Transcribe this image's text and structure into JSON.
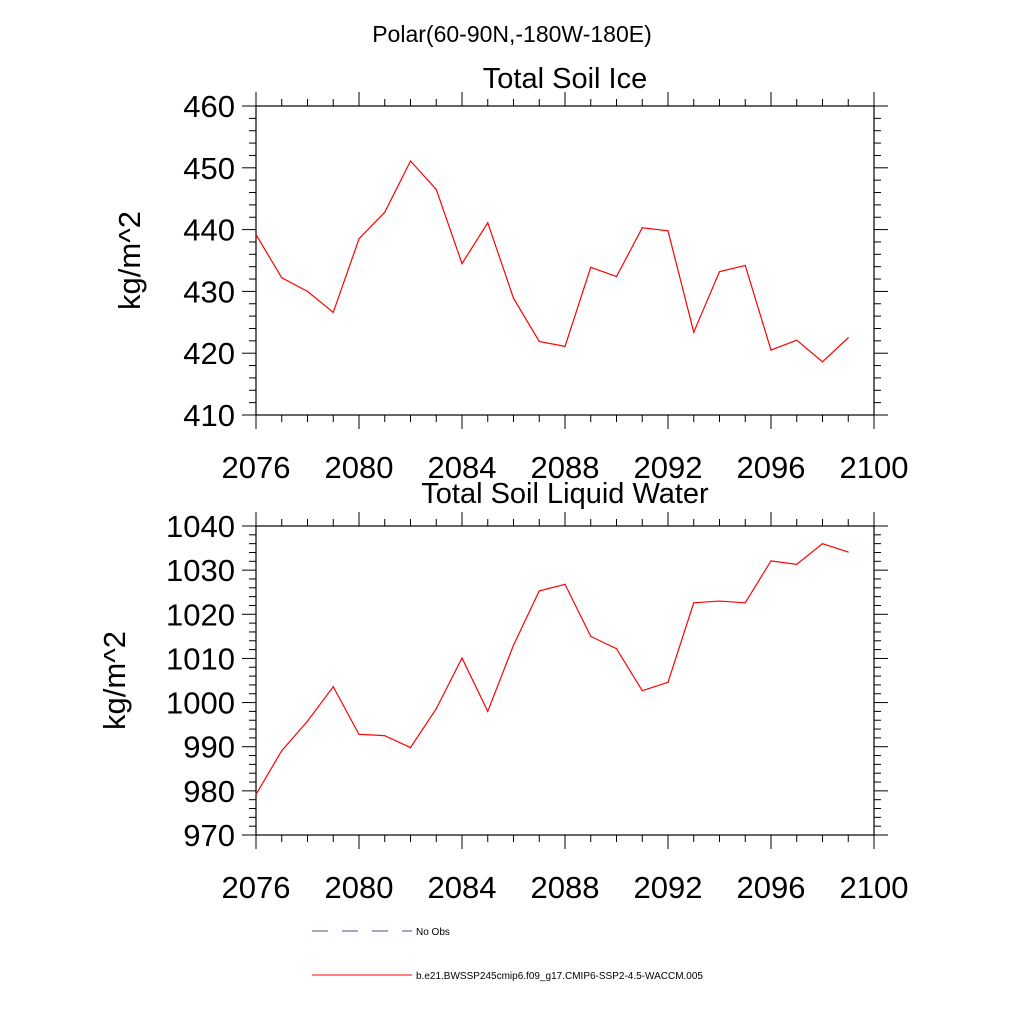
{
  "figure": {
    "title": "Polar(60-90N,-180W-180E)"
  },
  "chart_data": [
    {
      "type": "line",
      "title": "Total Soil Ice",
      "xlabel": "",
      "ylabel": "kg/m^2",
      "xlim": [
        2076,
        2100
      ],
      "ylim": [
        410,
        460
      ],
      "xticks": [
        2076,
        2080,
        2084,
        2088,
        2092,
        2096,
        2100
      ],
      "yticks": [
        410,
        420,
        430,
        440,
        450,
        460
      ],
      "grid": false,
      "series": [
        {
          "name": "b.e21.BWSSP245cmip6.f09_g17.CMIP6-SSP2-4.5-WACCM.005",
          "color": "#ff0000",
          "x": [
            2076,
            2077,
            2078,
            2079,
            2080,
            2081,
            2082,
            2083,
            2084,
            2085,
            2086,
            2087,
            2088,
            2089,
            2090,
            2091,
            2092,
            2093,
            2094,
            2095,
            2096,
            2097,
            2098,
            2099
          ],
          "values": [
            439.2,
            432.2,
            430.0,
            426.6,
            438.5,
            442.8,
            451.1,
            446.5,
            434.5,
            441.1,
            428.9,
            421.9,
            421.1,
            433.9,
            432.4,
            440.3,
            439.8,
            423.4,
            433.2,
            434.2,
            420.5,
            422.1,
            418.6,
            422.5
          ]
        }
      ]
    },
    {
      "type": "line",
      "title": "Total Soil Liquid Water",
      "xlabel": "",
      "ylabel": "kg/m^2",
      "xlim": [
        2076,
        2100
      ],
      "ylim": [
        970,
        1040
      ],
      "xticks": [
        2076,
        2080,
        2084,
        2088,
        2092,
        2096,
        2100
      ],
      "yticks": [
        970,
        980,
        990,
        1000,
        1010,
        1020,
        1030,
        1040
      ],
      "grid": false,
      "series": [
        {
          "name": "b.e21.BWSSP245cmip6.f09_g17.CMIP6-SSP2-4.5-WACCM.005",
          "color": "#ff0000",
          "x": [
            2076,
            2077,
            2078,
            2079,
            2080,
            2081,
            2082,
            2083,
            2084,
            2085,
            2086,
            2087,
            2088,
            2089,
            2090,
            2091,
            2092,
            2093,
            2094,
            2095,
            2096,
            2097,
            2098,
            2099
          ],
          "values": [
            979.2,
            989.1,
            995.8,
            1003.6,
            992.8,
            992.5,
            989.8,
            998.6,
            1010.1,
            998.0,
            1013.0,
            1025.3,
            1026.8,
            1015.0,
            1012.2,
            1002.7,
            1004.6,
            1022.6,
            1023.0,
            1022.6,
            1032.1,
            1031.3,
            1036.0,
            1034.1
          ]
        }
      ]
    }
  ],
  "legend": {
    "placement": "bottom",
    "items": [
      {
        "label": "No Obs",
        "color": "#4a4a9a",
        "style": "dashed"
      },
      {
        "label": "b.e21.BWSSP245cmip6.f09_g17.CMIP6-SSP2-4.5-WACCM.005",
        "color": "#ff0000",
        "style": "solid"
      }
    ]
  }
}
